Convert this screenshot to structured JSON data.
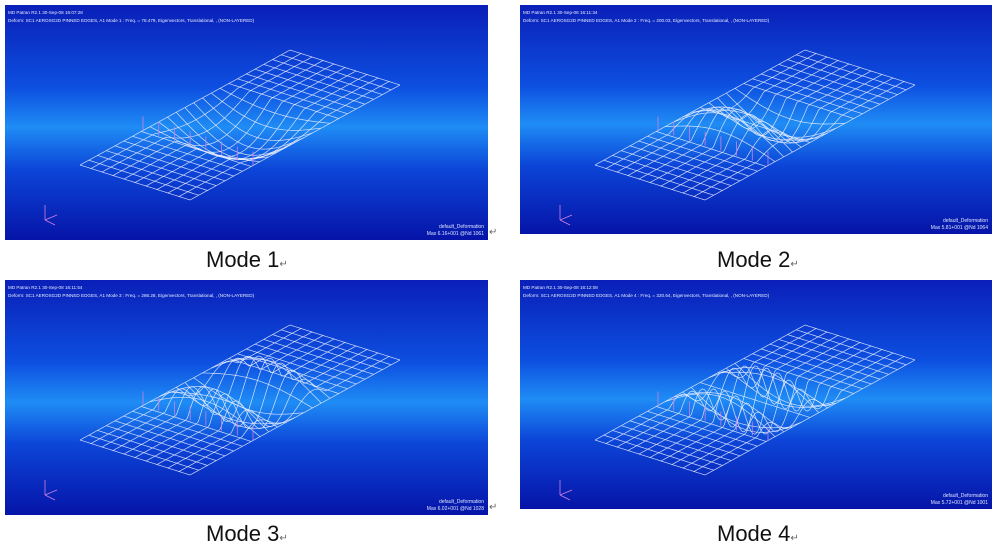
{
  "figures": [
    {
      "header_line1": "MD Patran R2.1 30-Sep-08 16:07:28",
      "header_line2": "Deform: SC1 AEROSG2D PINNED EDGES, A1 Mode 1 : Freq. = 78.479, Eigenvectors, Translational, , (NON-LAYERED)",
      "footer_line1": "default_Deformation",
      "footer_line2": "Max 6.16+001 @Nd 1061",
      "caption": "Mode 1",
      "mode": 1
    },
    {
      "header_line1": "MD Patran R2.1 30-Sep-08 16:11:34",
      "header_line2": "Deform: SC1 AEROSG2D PINNED EDGES, A1 Mode 2 : Freq. = 200.03, Eigenvectors, Translational, , (NON-LAYERED)",
      "footer_line1": "default_Deformation",
      "footer_line2": "Max 5.81+001 @Nd 1064",
      "caption": "Mode 2",
      "mode": 2
    },
    {
      "header_line1": "MD Patran R2.1 30-Sep-08 16:11:54",
      "header_line2": "Deform: SC1 AEROSG2D PINNED EDGES, A1 Mode 3 : Freq. = 286.28, Eigenvectors, Translational, , (NON-LAYERED)",
      "footer_line1": "default_Deformation",
      "footer_line2": "Max 6.02+001 @Nd 1028",
      "caption": "Mode 3",
      "mode": 3
    },
    {
      "header_line1": "MD Patran R2.1 30-Sep-08 16:12:08",
      "header_line2": "Deform: SC1 AEROSG2D PINNED EDGES, A1 Mode 4 : Freq. = 320.64, Eigenvectors, Translational, , (NON-LAYERED)",
      "footer_line1": "default_Deformation",
      "footer_line2": "Max 5.72+001 @Nd 1001",
      "caption": "Mode 4",
      "mode": 4
    }
  ],
  "return_mark": "↵",
  "mesh_color": "#e6ecff",
  "marker_color": "#d080e0"
}
